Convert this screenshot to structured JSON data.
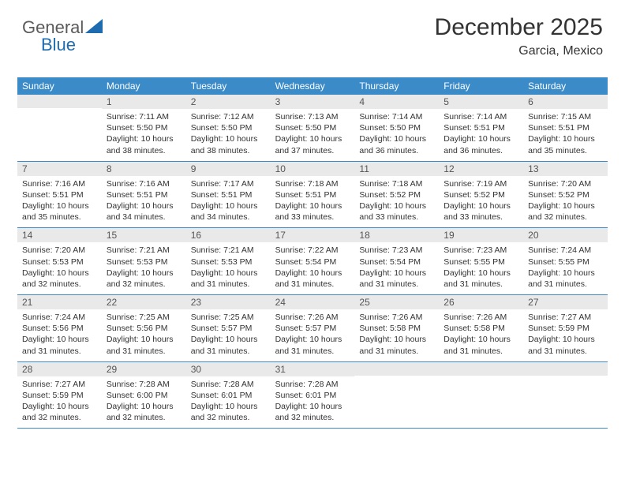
{
  "logo": {
    "text1": "General",
    "text2": "Blue",
    "color1": "#5a5a5a",
    "color2": "#1f6bb0",
    "triangle_color": "#1f6bb0"
  },
  "header": {
    "month": "December 2025",
    "location": "Garcia, Mexico"
  },
  "colors": {
    "header_bg": "#3b8bc8",
    "header_fg": "#ffffff",
    "daybar_bg": "#e9e9e9",
    "rule": "#3b8bc8",
    "text": "#333333"
  },
  "day_labels": [
    "Sunday",
    "Monday",
    "Tuesday",
    "Wednesday",
    "Thursday",
    "Friday",
    "Saturday"
  ],
  "weeks": [
    [
      {
        "n": "",
        "sr": "",
        "ss": "",
        "dl": ""
      },
      {
        "n": "1",
        "sr": "Sunrise: 7:11 AM",
        "ss": "Sunset: 5:50 PM",
        "dl": "Daylight: 10 hours and 38 minutes."
      },
      {
        "n": "2",
        "sr": "Sunrise: 7:12 AM",
        "ss": "Sunset: 5:50 PM",
        "dl": "Daylight: 10 hours and 38 minutes."
      },
      {
        "n": "3",
        "sr": "Sunrise: 7:13 AM",
        "ss": "Sunset: 5:50 PM",
        "dl": "Daylight: 10 hours and 37 minutes."
      },
      {
        "n": "4",
        "sr": "Sunrise: 7:14 AM",
        "ss": "Sunset: 5:50 PM",
        "dl": "Daylight: 10 hours and 36 minutes."
      },
      {
        "n": "5",
        "sr": "Sunrise: 7:14 AM",
        "ss": "Sunset: 5:51 PM",
        "dl": "Daylight: 10 hours and 36 minutes."
      },
      {
        "n": "6",
        "sr": "Sunrise: 7:15 AM",
        "ss": "Sunset: 5:51 PM",
        "dl": "Daylight: 10 hours and 35 minutes."
      }
    ],
    [
      {
        "n": "7",
        "sr": "Sunrise: 7:16 AM",
        "ss": "Sunset: 5:51 PM",
        "dl": "Daylight: 10 hours and 35 minutes."
      },
      {
        "n": "8",
        "sr": "Sunrise: 7:16 AM",
        "ss": "Sunset: 5:51 PM",
        "dl": "Daylight: 10 hours and 34 minutes."
      },
      {
        "n": "9",
        "sr": "Sunrise: 7:17 AM",
        "ss": "Sunset: 5:51 PM",
        "dl": "Daylight: 10 hours and 34 minutes."
      },
      {
        "n": "10",
        "sr": "Sunrise: 7:18 AM",
        "ss": "Sunset: 5:51 PM",
        "dl": "Daylight: 10 hours and 33 minutes."
      },
      {
        "n": "11",
        "sr": "Sunrise: 7:18 AM",
        "ss": "Sunset: 5:52 PM",
        "dl": "Daylight: 10 hours and 33 minutes."
      },
      {
        "n": "12",
        "sr": "Sunrise: 7:19 AM",
        "ss": "Sunset: 5:52 PM",
        "dl": "Daylight: 10 hours and 33 minutes."
      },
      {
        "n": "13",
        "sr": "Sunrise: 7:20 AM",
        "ss": "Sunset: 5:52 PM",
        "dl": "Daylight: 10 hours and 32 minutes."
      }
    ],
    [
      {
        "n": "14",
        "sr": "Sunrise: 7:20 AM",
        "ss": "Sunset: 5:53 PM",
        "dl": "Daylight: 10 hours and 32 minutes."
      },
      {
        "n": "15",
        "sr": "Sunrise: 7:21 AM",
        "ss": "Sunset: 5:53 PM",
        "dl": "Daylight: 10 hours and 32 minutes."
      },
      {
        "n": "16",
        "sr": "Sunrise: 7:21 AM",
        "ss": "Sunset: 5:53 PM",
        "dl": "Daylight: 10 hours and 31 minutes."
      },
      {
        "n": "17",
        "sr": "Sunrise: 7:22 AM",
        "ss": "Sunset: 5:54 PM",
        "dl": "Daylight: 10 hours and 31 minutes."
      },
      {
        "n": "18",
        "sr": "Sunrise: 7:23 AM",
        "ss": "Sunset: 5:54 PM",
        "dl": "Daylight: 10 hours and 31 minutes."
      },
      {
        "n": "19",
        "sr": "Sunrise: 7:23 AM",
        "ss": "Sunset: 5:55 PM",
        "dl": "Daylight: 10 hours and 31 minutes."
      },
      {
        "n": "20",
        "sr": "Sunrise: 7:24 AM",
        "ss": "Sunset: 5:55 PM",
        "dl": "Daylight: 10 hours and 31 minutes."
      }
    ],
    [
      {
        "n": "21",
        "sr": "Sunrise: 7:24 AM",
        "ss": "Sunset: 5:56 PM",
        "dl": "Daylight: 10 hours and 31 minutes."
      },
      {
        "n": "22",
        "sr": "Sunrise: 7:25 AM",
        "ss": "Sunset: 5:56 PM",
        "dl": "Daylight: 10 hours and 31 minutes."
      },
      {
        "n": "23",
        "sr": "Sunrise: 7:25 AM",
        "ss": "Sunset: 5:57 PM",
        "dl": "Daylight: 10 hours and 31 minutes."
      },
      {
        "n": "24",
        "sr": "Sunrise: 7:26 AM",
        "ss": "Sunset: 5:57 PM",
        "dl": "Daylight: 10 hours and 31 minutes."
      },
      {
        "n": "25",
        "sr": "Sunrise: 7:26 AM",
        "ss": "Sunset: 5:58 PM",
        "dl": "Daylight: 10 hours and 31 minutes."
      },
      {
        "n": "26",
        "sr": "Sunrise: 7:26 AM",
        "ss": "Sunset: 5:58 PM",
        "dl": "Daylight: 10 hours and 31 minutes."
      },
      {
        "n": "27",
        "sr": "Sunrise: 7:27 AM",
        "ss": "Sunset: 5:59 PM",
        "dl": "Daylight: 10 hours and 31 minutes."
      }
    ],
    [
      {
        "n": "28",
        "sr": "Sunrise: 7:27 AM",
        "ss": "Sunset: 5:59 PM",
        "dl": "Daylight: 10 hours and 32 minutes."
      },
      {
        "n": "29",
        "sr": "Sunrise: 7:28 AM",
        "ss": "Sunset: 6:00 PM",
        "dl": "Daylight: 10 hours and 32 minutes."
      },
      {
        "n": "30",
        "sr": "Sunrise: 7:28 AM",
        "ss": "Sunset: 6:01 PM",
        "dl": "Daylight: 10 hours and 32 minutes."
      },
      {
        "n": "31",
        "sr": "Sunrise: 7:28 AM",
        "ss": "Sunset: 6:01 PM",
        "dl": "Daylight: 10 hours and 32 minutes."
      },
      {
        "n": "",
        "sr": "",
        "ss": "",
        "dl": ""
      },
      {
        "n": "",
        "sr": "",
        "ss": "",
        "dl": ""
      },
      {
        "n": "",
        "sr": "",
        "ss": "",
        "dl": ""
      }
    ]
  ]
}
